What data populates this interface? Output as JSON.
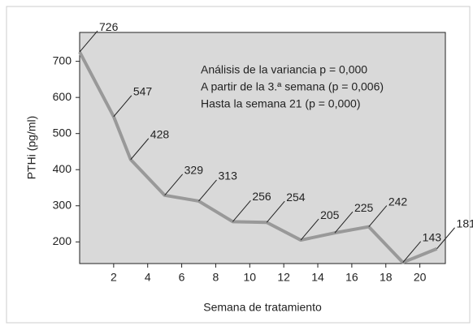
{
  "chart_data": {
    "type": "line",
    "x_label": "Semana de tratamiento",
    "y_label": "PTHi (pg/ml)",
    "annotations": [
      "Análisis de la variancia p = 0,000",
      "A partir de la 3.ª semana (p = 0,006)",
      "Hasta la semana 21 (p = 0,000)"
    ],
    "x": [
      0,
      2,
      3,
      5,
      7,
      9,
      11,
      13,
      15,
      17,
      19,
      21
    ],
    "series": [
      {
        "color": "#999999",
        "values": [
          726,
          547,
          428,
          329,
          313,
          256,
          254,
          205,
          225,
          242,
          143,
          181
        ]
      }
    ],
    "xlim": [
      0,
      21.5
    ],
    "xticks": [
      2,
      4,
      6,
      8,
      10,
      12,
      14,
      16,
      18,
      20
    ],
    "ylim": [
      140,
      780
    ],
    "yticks": [
      200,
      300,
      400,
      500,
      600,
      700
    ],
    "background": "#d9d9d9"
  }
}
